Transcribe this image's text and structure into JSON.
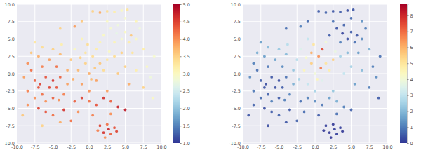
{
  "chart_data": [
    {
      "type": "scatter",
      "x": [
        -8.5,
        -8,
        -7.5,
        -7,
        -6.5,
        -6,
        -5,
        -5.5,
        -6,
        -6.5,
        -7,
        -5.5,
        -4.5,
        -4,
        -4.5,
        -3.5,
        -3,
        -3,
        -2.5,
        -4,
        -5,
        -6.5,
        -8,
        -9,
        -8.5,
        -7.5,
        -5,
        -6.8,
        -4.2,
        -2.2,
        -3.8,
        -2,
        -1,
        -7.5,
        -1.5,
        -0.5,
        0.5,
        1,
        -0.5,
        1.5,
        0,
        1,
        2,
        2.5,
        -1,
        0,
        1.5,
        -0.2,
        0.8,
        -1.2,
        2.8,
        0.3,
        2,
        3,
        4,
        5,
        5.5,
        4.5,
        3.5,
        6.5,
        6,
        4.5,
        3.5,
        7,
        2.5,
        5,
        6.5,
        7.5,
        3.8,
        5.8,
        8,
        8.5,
        7.5,
        9,
        6.5,
        5,
        4,
        5.5,
        8.8,
        0.5,
        1.5,
        2.5,
        3.5,
        4.5,
        5.3,
        -1,
        -2,
        -4,
        -7,
        -6,
        -5,
        -3.5,
        -2,
        -1,
        0,
        1,
        2,
        3,
        4,
        5,
        -1.5,
        0.5,
        -4,
        -6.5,
        -2.5,
        3,
        2.5,
        -8.5,
        -9.2,
        1.5,
        2.5,
        3.5,
        2,
        3,
        1.2,
        3.8,
        2.7,
        2.2
      ],
      "values": [
        1.5,
        0.5,
        -1,
        -2,
        -3,
        -4,
        -3.5,
        -2,
        -0.5,
        1,
        2.5,
        2,
        1,
        -0.5,
        -2,
        -3,
        -1.5,
        0.5,
        2,
        2.8,
        3.5,
        3.8,
        3,
        -0.5,
        -2.5,
        -3.5,
        -1,
        -1.5,
        -3.8,
        -0.8,
        4.2,
        3.5,
        5,
        4.5,
        0.5,
        1.5,
        2.5,
        3.5,
        3,
        1.5,
        0,
        -1,
        0.5,
        2,
        -1.5,
        -2.5,
        4.5,
        4.2,
        0.8,
        2.3,
        3.2,
        -0.8,
        5.5,
        6.5,
        7,
        6,
        4.5,
        5,
        4.5,
        5,
        3,
        3,
        2.5,
        6.5,
        7.5,
        8,
        7.5,
        3.5,
        5.8,
        5.5,
        1,
        -0.5,
        -2,
        2.5,
        0.5,
        1,
        0,
        -1.5,
        -3.5,
        9,
        8.8,
        9,
        8.9,
        9.1,
        9.2,
        7.5,
        6.8,
        6.5,
        -5,
        -5.5,
        -6,
        -5.2,
        -4,
        -3.5,
        -4,
        -4.5,
        -3.5,
        -4,
        -4.8,
        -5.2,
        -5.5,
        -6,
        -7,
        -7.5,
        -6.8,
        -5.8,
        -2.5,
        -4.5,
        -6,
        -7.5,
        -7.3,
        -7.8,
        -8.5,
        -8.7,
        -8.2,
        -8.3,
        -8,
        -9.2
      ],
      "color_values": [
        4.0,
        4.2,
        4.3,
        4.4,
        4.2,
        4.0,
        4.3,
        4.5,
        4.4,
        4.1,
        3.8,
        3.9,
        4.2,
        4.3,
        4.4,
        4.1,
        3.9,
        3.8,
        3.6,
        3.7,
        3.5,
        3.4,
        3.6,
        3.9,
        4.1,
        4.0,
        4.6,
        4.5,
        4.0,
        3.8,
        3.2,
        3.0,
        3.1,
        3.3,
        3.7,
        3.5,
        3.4,
        3.2,
        3.3,
        3.6,
        3.8,
        3.9,
        3.4,
        3.3,
        3.9,
        4.0,
        3.1,
        3.4,
        3.6,
        3.5,
        3.0,
        3.7,
        3.0,
        2.9,
        2.8,
        3.0,
        3.2,
        2.9,
        3.1,
        3.0,
        3.3,
        3.5,
        3.4,
        2.8,
        3.0,
        2.9,
        3.1,
        3.2,
        2.7,
        3.6,
        3.0,
        2.8,
        3.5,
        2.9,
        3.2,
        3.5,
        3.6,
        3.8,
        3.0,
        3.5,
        3.8,
        3.4,
        3.2,
        3.0,
        3.3,
        3.6,
        3.9,
        3.5,
        4.5,
        4.4,
        4.2,
        4.6,
        4.3,
        4.5,
        4.2,
        4.4,
        4.6,
        4.3,
        4.7,
        4.8,
        4.0,
        4.1,
        3.8,
        3.5,
        4.2,
        4.0,
        3.9,
        4.0,
        3.6,
        4.5,
        4.2,
        4.4,
        4.6,
        4.3,
        4.1,
        4.5,
        4.7,
        4.0
      ],
      "xlim": [
        -10,
        10
      ],
      "ylim": [
        -10,
        10
      ],
      "xticks": [
        {
          "value": -10,
          "label": "-10.0"
        },
        -7.5,
        {
          "value": -5,
          "label": "-5.0"
        },
        -2.5,
        {
          "value": 0,
          "label": "0.0"
        },
        2.5,
        {
          "value": 5,
          "label": "5.0"
        },
        7.5,
        {
          "value": 10,
          "label": "10.0"
        }
      ],
      "yticks": [
        {
          "value": -10,
          "label": "-10.0"
        },
        -7.5,
        {
          "value": -5,
          "label": "-5.0"
        },
        -2.5,
        {
          "value": 0,
          "label": "0.0"
        },
        2.5,
        {
          "value": 5,
          "label": "5.0"
        },
        7.5,
        {
          "value": 10,
          "label": "10.0"
        }
      ],
      "grid": true,
      "colorbar": {
        "range": [
          1,
          5
        ],
        "ticks": [
          {
            "value": 1,
            "label": "1.0"
          },
          1.5,
          {
            "value": 2,
            "label": "2.0"
          },
          2.5,
          {
            "value": 3,
            "label": "3.0"
          },
          3.5,
          {
            "value": 4,
            "label": "4.0"
          },
          4.5,
          {
            "value": 5,
            "label": "5.0"
          }
        ]
      }
    },
    {
      "type": "scatter",
      "x": [
        -8.5,
        -8,
        -7.5,
        -7,
        -6.5,
        -6,
        -5,
        -5.5,
        -6,
        -6.5,
        -7,
        -5.5,
        -4.5,
        -4,
        -4.5,
        -3.5,
        -3,
        -3,
        -2.5,
        -4,
        -5,
        -6.5,
        -8,
        -9,
        -8.5,
        -7.5,
        -5,
        -6.8,
        -4.2,
        -2.2,
        -3.8,
        -2,
        -1,
        -7.5,
        -1.5,
        -0.5,
        0.5,
        1,
        -0.5,
        1.5,
        0,
        1,
        2,
        2.5,
        -1,
        0,
        1.5,
        -0.2,
        0.8,
        -1.2,
        2.8,
        0.3,
        2,
        3,
        4,
        5,
        5.5,
        4.5,
        3.5,
        6.5,
        6,
        4.5,
        3.5,
        7,
        2.5,
        5,
        6.5,
        7.5,
        3.8,
        5.8,
        8,
        8.5,
        7.5,
        9,
        6.5,
        5,
        4,
        5.5,
        8.8,
        0.5,
        1.5,
        2.5,
        3.5,
        4.5,
        5.3,
        -1,
        -2,
        -4,
        -7,
        -6,
        -5,
        -3.5,
        -2,
        -1,
        0,
        1,
        2,
        3,
        4,
        5,
        -1.5,
        0.5,
        -4,
        -6.5,
        -2.5,
        3,
        2.5,
        -8.5,
        -9.2,
        1.5,
        2.5,
        3.5,
        2,
        3,
        1.2,
        3.8,
        2.7,
        2.2
      ],
      "values": [
        1.5,
        0.5,
        -1,
        -2,
        -3,
        -4,
        -3.5,
        -2,
        -0.5,
        1,
        2.5,
        2,
        1,
        -0.5,
        -2,
        -3,
        -1.5,
        0.5,
        2,
        2.8,
        3.5,
        3.8,
        3,
        -0.5,
        -2.5,
        -3.5,
        -1,
        -1.5,
        -3.8,
        -0.8,
        4.2,
        3.5,
        5,
        4.5,
        0.5,
        1.5,
        2.5,
        3.5,
        3,
        1.5,
        0,
        -1,
        0.5,
        2,
        -1.5,
        -2.5,
        4.5,
        4.2,
        0.8,
        2.3,
        3.2,
        -0.8,
        5.5,
        6.5,
        7,
        6,
        4.5,
        5,
        4.5,
        5,
        3,
        3,
        2.5,
        6.5,
        7.5,
        8,
        7.5,
        3.5,
        5.8,
        5.5,
        1,
        -0.5,
        -2,
        2.5,
        0.5,
        1,
        0,
        -1.5,
        -3.5,
        9,
        8.8,
        9,
        8.9,
        9.1,
        9.2,
        7.5,
        6.8,
        6.5,
        -5,
        -5.5,
        -6,
        -5.2,
        -4,
        -3.5,
        -4,
        -4.5,
        -3.5,
        -4,
        -4.8,
        -5.2,
        -5.5,
        -6,
        -7,
        -7.5,
        -6.8,
        -5.8,
        -2.5,
        -4.5,
        -6,
        -7.5,
        -7.3,
        -7.8,
        -8.5,
        -8.7,
        -8.2,
        -8.3,
        -8,
        -9.2
      ],
      "color_values": [
        1.0,
        0.8,
        0.5,
        0.4,
        0.6,
        1.0,
        0.5,
        0.3,
        0.4,
        0.9,
        1.5,
        1.6,
        1.2,
        0.8,
        0.5,
        1.1,
        1.8,
        2.2,
        2.8,
        2.0,
        2.3,
        2.0,
        1.8,
        1.2,
        0.9,
        0.7,
        0.3,
        0.3,
        1.0,
        2.5,
        2.8,
        3.5,
        3.0,
        1.5,
        4.5,
        5.5,
        6.5,
        7.5,
        6.0,
        5.0,
        4.0,
        3.5,
        4.8,
        5.5,
        3.0,
        2.5,
        4.0,
        5.0,
        6.8,
        4.2,
        3.8,
        4.5,
        0.5,
        0.4,
        0.6,
        0.5,
        0.8,
        0.3,
        1.0,
        1.2,
        1.5,
        2.0,
        2.5,
        1.0,
        0.8,
        0.7,
        1.3,
        1.8,
        0.2,
        0.4,
        1.0,
        1.2,
        1.0,
        0.8,
        2.0,
        2.5,
        3.0,
        1.5,
        0.5,
        0.5,
        0.6,
        0.4,
        0.5,
        0.3,
        0.4,
        0.7,
        1.0,
        0.8,
        0.3,
        0.5,
        0.6,
        0.4,
        0.8,
        1.0,
        1.2,
        0.9,
        1.5,
        1.8,
        1.0,
        0.6,
        0.7,
        0.5,
        0.4,
        0.3,
        0.6,
        0.8,
        2.2,
        0.6,
        0.4,
        0.1,
        0.0,
        0.1,
        0.0,
        0.1,
        0.0,
        0.0,
        0.1,
        0.0
      ],
      "xlim": [
        -10,
        10
      ],
      "ylim": [
        -10,
        10
      ],
      "xticks": [
        {
          "value": -10,
          "label": "-10.0"
        },
        -7.5,
        {
          "value": -5,
          "label": "-5.0"
        },
        -2.5,
        {
          "value": 0,
          "label": "0.0"
        },
        2.5,
        {
          "value": 5,
          "label": "5.0"
        },
        7.5,
        {
          "value": 10,
          "label": "10.0"
        }
      ],
      "yticks": [
        {
          "value": -10,
          "label": "-10.0"
        },
        -7.5,
        {
          "value": -5,
          "label": "-5.0"
        },
        -2.5,
        {
          "value": 0,
          "label": "0.0"
        },
        2.5,
        {
          "value": 5,
          "label": "5.0"
        },
        7.5,
        {
          "value": 10,
          "label": "10.0"
        }
      ],
      "grid": true,
      "colorbar": {
        "range": [
          0,
          8.7
        ],
        "ticks": [
          0,
          1,
          2,
          3,
          4,
          5,
          6,
          7,
          8
        ]
      }
    }
  ]
}
